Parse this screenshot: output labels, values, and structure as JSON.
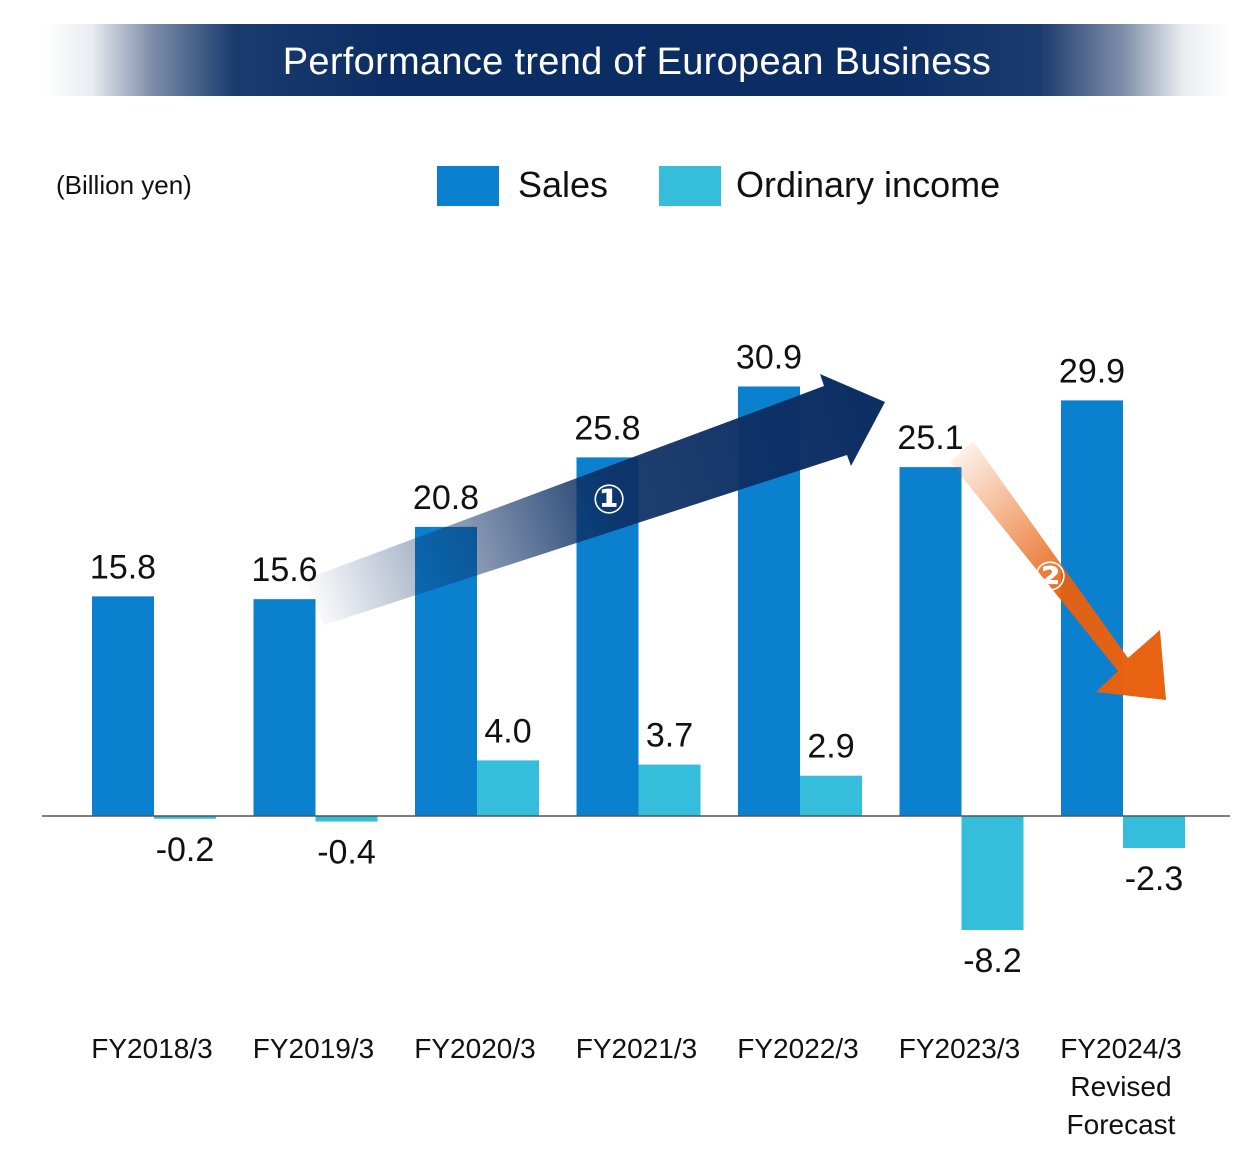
{
  "colors": {
    "sales": "#0a80cf",
    "income": "#34bedc",
    "banner": "#0b2d63",
    "arrow1": "#0d2f64",
    "arrow2": "#e8610f"
  },
  "chart_data": {
    "type": "bar",
    "title": "Performance trend of European Business",
    "unit": "(Billion yen)",
    "categories": [
      [
        "FY2018/3"
      ],
      [
        "FY2019/3"
      ],
      [
        "FY2020/3"
      ],
      [
        "FY2021/3"
      ],
      [
        "FY2022/3"
      ],
      [
        "FY2023/3"
      ],
      [
        "FY2024/3",
        "Revised",
        "Forecast"
      ]
    ],
    "series": [
      {
        "name": "Sales",
        "values": [
          15.8,
          15.6,
          20.8,
          25.8,
          30.9,
          25.1,
          29.9
        ],
        "labels": [
          "15.8",
          "15.6",
          "20.8",
          "25.8",
          "30.9",
          "25.1",
          "29.9"
        ]
      },
      {
        "name": "Ordinary income",
        "values": [
          -0.2,
          -0.4,
          4.0,
          3.7,
          2.9,
          -8.2,
          -2.3
        ],
        "labels": [
          "-0.2",
          "-0.4",
          "4.0",
          "3.7",
          "2.9",
          "-8.2",
          "-2.3"
        ]
      }
    ],
    "annotations": [
      {
        "label": "①",
        "from_category": 1,
        "to_category": 4,
        "direction": "up"
      },
      {
        "label": "②",
        "from_category": 5,
        "to_category": 6,
        "direction": "down"
      }
    ],
    "xlabel": "",
    "ylabel": "",
    "ylim": [
      -10,
      35
    ],
    "legend": "top-center"
  }
}
